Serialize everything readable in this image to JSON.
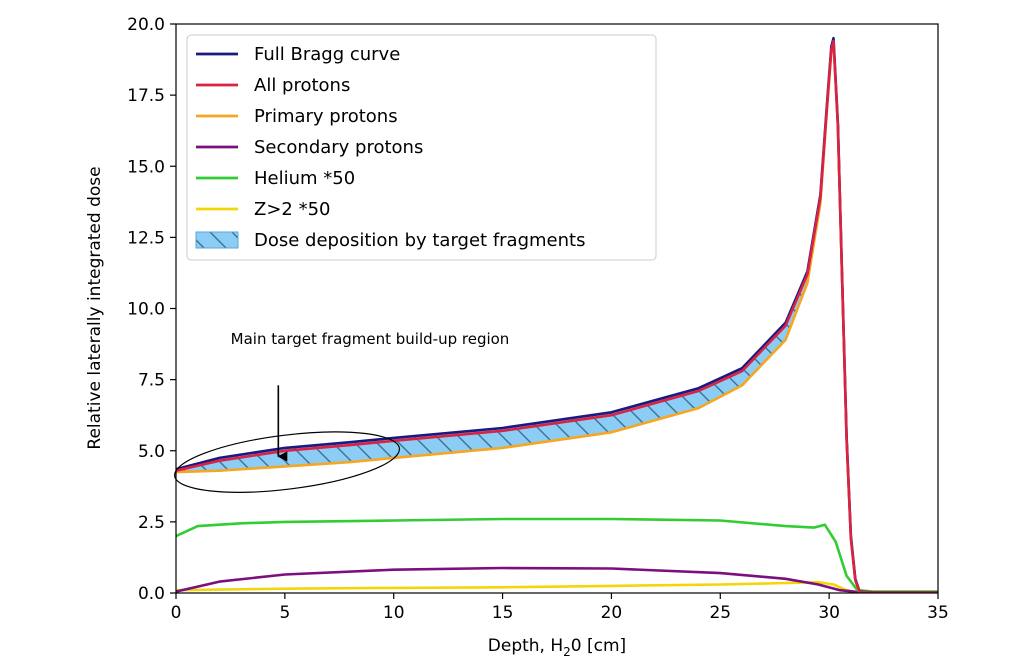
{
  "chart_data": {
    "type": "line",
    "xlabel": "Depth, H",
    "xlabel_sub": "2",
    "xlabel_suffix": "0 [cm]",
    "ylabel": "Relative laterally integrated dose",
    "xlim": [
      0,
      35
    ],
    "ylim": [
      0,
      20
    ],
    "xticks": [
      0,
      5,
      10,
      15,
      20,
      25,
      30,
      35
    ],
    "yticks": [
      0.0,
      2.5,
      5.0,
      7.5,
      10.0,
      12.5,
      15.0,
      17.5,
      20.0
    ],
    "xtick_labels": [
      "0",
      "5",
      "10",
      "15",
      "20",
      "25",
      "30",
      "35"
    ],
    "ytick_labels": [
      "0.0",
      "2.5",
      "5.0",
      "7.5",
      "10.0",
      "12.5",
      "15.0",
      "17.5",
      "20.0"
    ],
    "legend_position": "top-left",
    "grid": false,
    "series": [
      {
        "name": "Full Bragg curve",
        "color": "#1a1a80",
        "x": [
          0,
          2,
          5,
          8,
          10,
          15,
          20,
          24,
          26,
          28,
          29,
          29.6,
          29.9,
          30.1,
          30.2,
          30.4,
          30.6,
          30.8,
          31.0,
          31.2,
          31.4,
          32,
          35
        ],
        "values": [
          4.35,
          4.75,
          5.1,
          5.3,
          5.45,
          5.8,
          6.35,
          7.2,
          7.9,
          9.5,
          11.3,
          14.0,
          17.2,
          19.2,
          19.5,
          16.5,
          11.0,
          5.5,
          2.0,
          0.5,
          0.05,
          0.02,
          0.02
        ]
      },
      {
        "name": "All protons",
        "color": "#dc2243",
        "x": [
          0,
          2,
          5,
          8,
          10,
          15,
          20,
          24,
          26,
          28,
          29,
          29.6,
          29.9,
          30.1,
          30.2,
          30.4,
          30.6,
          30.8,
          31.0,
          31.2,
          31.4,
          32,
          35
        ],
        "values": [
          4.3,
          4.65,
          5.0,
          5.2,
          5.35,
          5.7,
          6.25,
          7.1,
          7.8,
          9.4,
          11.2,
          13.9,
          17.1,
          19.1,
          19.4,
          16.4,
          10.9,
          5.4,
          1.9,
          0.45,
          0.03,
          0.01,
          0.01
        ]
      },
      {
        "name": "Primary protons",
        "color": "#f5a623",
        "x": [
          0,
          2,
          5,
          8,
          10,
          15,
          20,
          24,
          26,
          28,
          29,
          29.6,
          29.9,
          30.1,
          30.2,
          30.4,
          30.6,
          30.8,
          31.0,
          31.2,
          31.4,
          32,
          35
        ],
        "values": [
          4.25,
          4.3,
          4.45,
          4.6,
          4.75,
          5.1,
          5.65,
          6.5,
          7.3,
          8.9,
          10.9,
          13.7,
          17.0,
          19.0,
          19.4,
          16.4,
          10.9,
          5.4,
          1.9,
          0.45,
          0.03,
          0.01,
          0.01
        ]
      },
      {
        "name": "Secondary protons",
        "color": "#7b0f7e",
        "x": [
          0,
          2,
          5,
          10,
          15,
          20,
          25,
          28,
          29.5,
          30.5,
          31.5,
          35
        ],
        "values": [
          0.05,
          0.4,
          0.65,
          0.82,
          0.88,
          0.86,
          0.7,
          0.5,
          0.3,
          0.1,
          0.02,
          0.0
        ]
      },
      {
        "name": "Helium *50",
        "color": "#32cd32",
        "x": [
          0,
          1,
          3,
          5,
          10,
          15,
          20,
          25,
          28,
          29.3,
          29.8,
          30.3,
          30.8,
          31.3,
          32,
          35
        ],
        "values": [
          2.0,
          2.35,
          2.45,
          2.5,
          2.55,
          2.6,
          2.6,
          2.55,
          2.35,
          2.3,
          2.4,
          1.8,
          0.6,
          0.1,
          0.05,
          0.05
        ]
      },
      {
        "name": "Z>2 *50",
        "color": "#f2d60a",
        "x": [
          0,
          5,
          10,
          15,
          20,
          25,
          28,
          29.5,
          30.2,
          30.8,
          31.3,
          35
        ],
        "values": [
          0.1,
          0.15,
          0.18,
          0.2,
          0.25,
          0.3,
          0.35,
          0.38,
          0.3,
          0.1,
          0.02,
          0.02
        ]
      }
    ],
    "fill_between": {
      "name": "Dose deposition by target fragments",
      "upper": "Full Bragg curve",
      "lower": "Primary protons",
      "x_range": [
        0,
        29.5
      ],
      "color": "#8ccdf5",
      "hatch_color": "#3a6f96"
    },
    "annotation": {
      "text": "Main target fragment build-up region",
      "ellipse_center": [
        5.1,
        4.6
      ],
      "ellipse_half_width": 5.2,
      "ellipse_half_height": 0.95,
      "arrow_from": [
        4.7,
        7.3
      ],
      "arrow_to": [
        4.7,
        4.8
      ]
    }
  }
}
